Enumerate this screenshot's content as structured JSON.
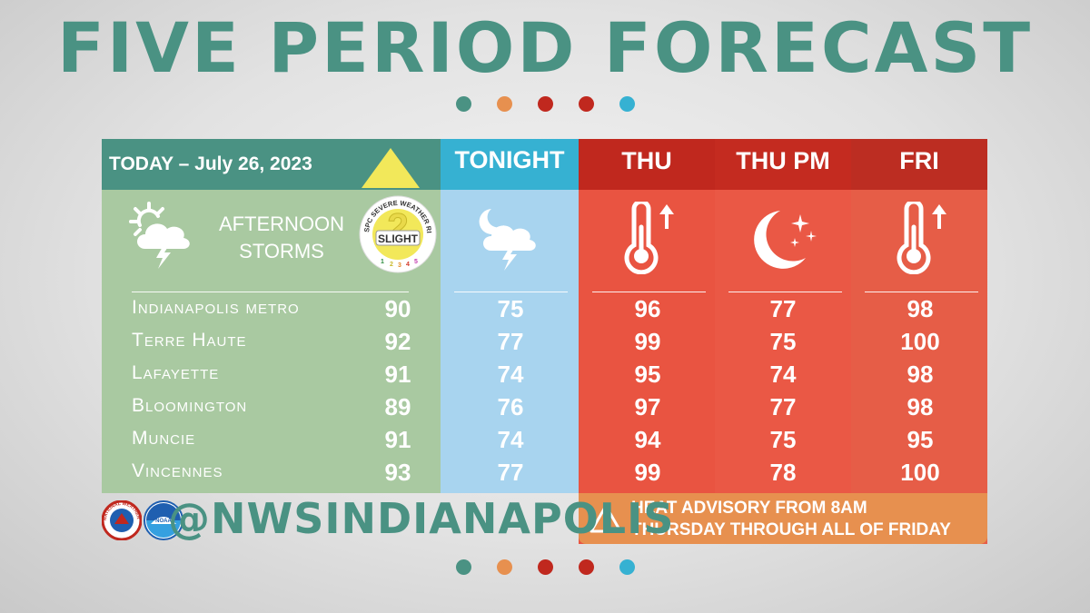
{
  "title": "FIVE PERIOD FORECAST",
  "dot_colors": [
    "#4a9283",
    "#e7904f",
    "#c0281e",
    "#c0281e",
    "#36b1d2"
  ],
  "headers": {
    "today": "TODAY – July 26, 2023",
    "tonight": "TONIGHT",
    "thu": "THU",
    "thu_pm": "THU PM",
    "fri": "FRI"
  },
  "today_conditions": "AFTERNOON STORMS",
  "spc_badge": {
    "ring_text": "SPC SEVERE WEATHER RISK",
    "level": "2",
    "label": "SLIGHT",
    "scale": [
      "1",
      "2",
      "3",
      "4",
      "5"
    ]
  },
  "icons": {
    "today": "partly-sunny-thunderstorm-icon",
    "tonight": "night-thunderstorm-icon",
    "thu": "thermometer-up-icon",
    "thu_pm": "moon-stars-icon",
    "fri": "thermometer-up-icon",
    "warning": "warning-triangle-icon"
  },
  "cities": [
    {
      "name": "Indianapolis metro",
      "today": "90",
      "tonight": "75",
      "thu": "96",
      "thu_pm": "77",
      "fri": "98"
    },
    {
      "name": "Terre Haute",
      "today": "92",
      "tonight": "77",
      "thu": "99",
      "thu_pm": "75",
      "fri": "100"
    },
    {
      "name": "Lafayette",
      "today": "91",
      "tonight": "74",
      "thu": "95",
      "thu_pm": "74",
      "fri": "98"
    },
    {
      "name": "Bloomington",
      "today": "89",
      "tonight": "76",
      "thu": "97",
      "thu_pm": "77",
      "fri": "98"
    },
    {
      "name": "Muncie",
      "today": "91",
      "tonight": "74",
      "thu": "94",
      "thu_pm": "75",
      "fri": "95"
    },
    {
      "name": "Vincennes",
      "today": "93",
      "tonight": "77",
      "thu": "99",
      "thu_pm": "78",
      "fri": "100"
    }
  ],
  "advisory": {
    "line1": "HEAT ADVISORY FROM 8AM",
    "line2": "THURSDAY THROUGH ALL OF FRIDAY"
  },
  "handle": "@NWSINDIANAPOLIS",
  "logos": {
    "nws": {
      "name": "nws-logo",
      "ring_text": "NATIONAL WEATHER SERVICE"
    },
    "noaa": {
      "name": "noaa-logo",
      "text": "NOAA"
    }
  }
}
